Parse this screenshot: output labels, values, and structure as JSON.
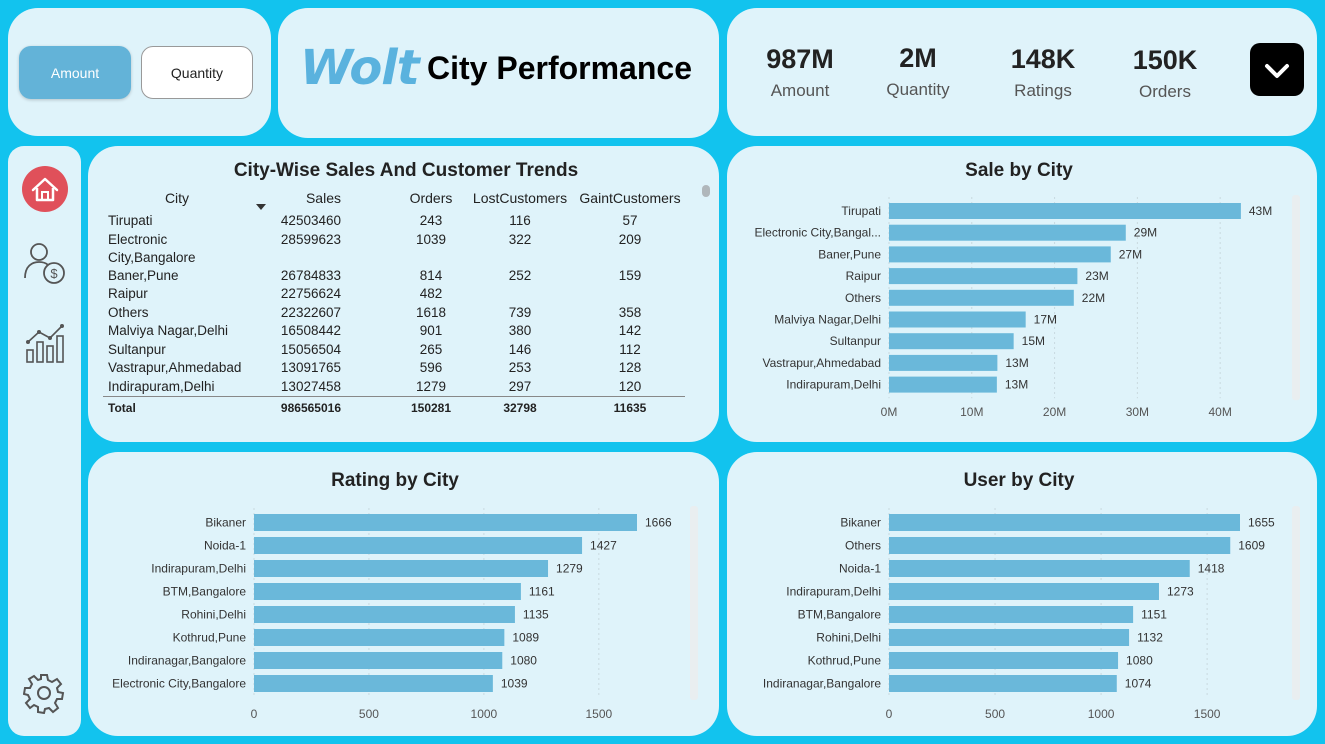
{
  "toggle": {
    "amount_label": "Amount",
    "quantity_label": "Quantity"
  },
  "header": {
    "logo_text": "Wolt",
    "title": "City Performance"
  },
  "kpis": [
    {
      "value": "987M",
      "label": "Amount"
    },
    {
      "value": "2M",
      "label": "Quantity"
    },
    {
      "value": "148K",
      "label": "Ratings"
    },
    {
      "value": "150K",
      "label": "Orders"
    }
  ],
  "nav": [
    "home-icon",
    "user-money-icon",
    "analytics-chart-icon",
    "gear-icon"
  ],
  "colors": {
    "bar": "#6ab8da",
    "card": "#dff3fa",
    "background": "#12c3ee",
    "home": "#e0505a"
  },
  "table": {
    "title": "City-Wise Sales And Customer Trends",
    "columns": [
      "City",
      "Sales",
      "Orders",
      "LostCustomers",
      "GaintCustomers"
    ],
    "rows": [
      [
        "Tirupati",
        "42503460",
        "243",
        "116",
        "57"
      ],
      [
        "Electronic\nCity,Bangalore",
        "28599623",
        "1039",
        "322",
        "209"
      ],
      [
        "Baner,Pune",
        "26784833",
        "814",
        "252",
        "159"
      ],
      [
        "Raipur",
        "22756624",
        "482",
        "",
        ""
      ],
      [
        "Others",
        "22322607",
        "1618",
        "739",
        "358"
      ],
      [
        "Malviya Nagar,Delhi",
        "16508442",
        "901",
        "380",
        "142"
      ],
      [
        "Sultanpur",
        "15056504",
        "265",
        "146",
        "112"
      ],
      [
        "Vastrapur,Ahmedabad",
        "13091765",
        "596",
        "253",
        "128"
      ],
      [
        "Indirapuram,Delhi",
        "13027458",
        "1279",
        "297",
        "120"
      ]
    ],
    "total": [
      "Total",
      "986565016",
      "150281",
      "32798",
      "11635"
    ]
  },
  "chart_data": [
    {
      "type": "bar",
      "title": "Sale by City",
      "categories": [
        "Tirupati",
        "Electronic City,Bangal...",
        "Baner,Pune",
        "Raipur",
        "Others",
        "Malviya Nagar,Delhi",
        "Sultanpur",
        "Vastrapur,Ahmedabad",
        "Indirapuram,Delhi"
      ],
      "values": [
        42503460,
        28599623,
        26784833,
        22756624,
        22322607,
        16508442,
        15056504,
        13091765,
        13027458
      ],
      "data_labels": [
        "43M",
        "29M",
        "27M",
        "23M",
        "22M",
        "17M",
        "15M",
        "13M",
        "13M"
      ],
      "ticks": [
        "0M",
        "10M",
        "20M",
        "30M",
        "40M"
      ],
      "tick_values": [
        0,
        10000000,
        20000000,
        30000000,
        40000000
      ],
      "xlim": [
        0,
        43000000
      ]
    },
    {
      "type": "bar",
      "title": "Rating by City",
      "categories": [
        "Bikaner",
        "Noida-1",
        "Indirapuram,Delhi",
        "BTM,Bangalore",
        "Rohini,Delhi",
        "Kothrud,Pune",
        "Indiranagar,Bangalore",
        "Electronic City,Bangalore"
      ],
      "values": [
        1666,
        1427,
        1279,
        1161,
        1135,
        1089,
        1080,
        1039
      ],
      "data_labels": [
        "1666",
        "1427",
        "1279",
        "1161",
        "1135",
        "1089",
        "1080",
        "1039"
      ],
      "ticks": [
        "0",
        "500",
        "1000",
        "1500"
      ],
      "tick_values": [
        0,
        500,
        1000,
        1500
      ],
      "xlim": [
        0,
        1666
      ]
    },
    {
      "type": "bar",
      "title": "User by City",
      "categories": [
        "Bikaner",
        "Others",
        "Noida-1",
        "Indirapuram,Delhi",
        "BTM,Bangalore",
        "Rohini,Delhi",
        "Kothrud,Pune",
        "Indiranagar,Bangalore"
      ],
      "values": [
        1655,
        1609,
        1418,
        1273,
        1151,
        1132,
        1080,
        1074
      ],
      "data_labels": [
        "1655",
        "1609",
        "1418",
        "1273",
        "1151",
        "1132",
        "1080",
        "1074"
      ],
      "ticks": [
        "0",
        "500",
        "1000",
        "1500"
      ],
      "tick_values": [
        0,
        500,
        1000,
        1500
      ],
      "xlim": [
        0,
        1655
      ]
    }
  ]
}
